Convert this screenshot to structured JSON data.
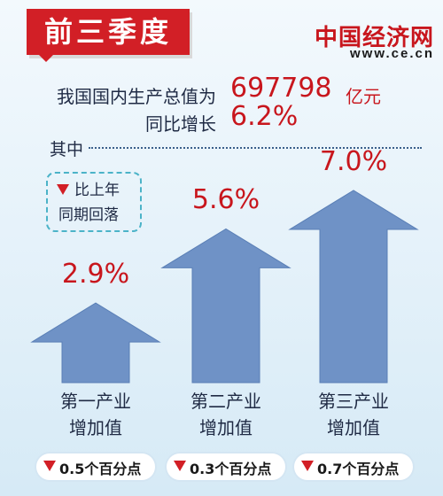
{
  "header": {
    "title": "前三季度",
    "logo_text": "中国经济网",
    "site_url": "www.ce.cn"
  },
  "summary": {
    "gdp_label": "我国国内生产总值为",
    "gdp_value": "697798",
    "gdp_unit": "亿元",
    "growth_label": "同比增长",
    "growth_value": "6.2%"
  },
  "among_label": "其中",
  "note": {
    "line1": "比上年",
    "line2": "同期回落"
  },
  "chart_data": {
    "type": "bar",
    "categories": [
      "第一产业\n增加值",
      "第二产业\n增加值",
      "第三产业\n增加值"
    ],
    "values": [
      2.9,
      5.6,
      7.0
    ],
    "value_labels": [
      "2.9%",
      "5.6%",
      "7.0%"
    ],
    "changes": [
      "0.5个百分点",
      "0.3个百分点",
      "0.7个百分点"
    ],
    "category_lines": [
      [
        "第一产业",
        "增加值"
      ],
      [
        "第二产业",
        "增加值"
      ],
      [
        "第三产业",
        "增加值"
      ]
    ],
    "color": "#6f92c6"
  }
}
